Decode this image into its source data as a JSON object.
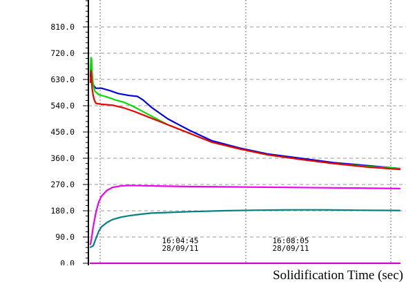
{
  "chart_data": {
    "type": "line",
    "xlabel": "Solidification Time (sec)",
    "ylabel": "",
    "ylim": [
      0,
      900
    ],
    "y_ticks": [
      0,
      90,
      180,
      270,
      360,
      450,
      540,
      630,
      720,
      810
    ],
    "y_tick_labels": [
      "0.0",
      "90.0",
      "180.0",
      "270.0",
      "360.0",
      "450.0",
      "540.0",
      "630.0",
      "720.0",
      "810.0"
    ],
    "x_unit": "sec",
    "xlim": [
      0,
      560
    ],
    "x_time_labels": [
      {
        "x": 145,
        "time": "16:04:45",
        "date": "28/09/11"
      },
      {
        "x": 345,
        "time": "16:08:05",
        "date": "28/09/11"
      }
    ],
    "grid": true,
    "legend": "none",
    "series": [
      {
        "color": "#0000dd",
        "x": [
          0,
          1,
          3,
          6,
          10,
          20,
          35,
          50,
          70,
          85,
          95,
          110,
          140,
          180,
          220,
          270,
          320,
          380,
          440,
          500,
          560
        ],
        "y": [
          640,
          680,
          625,
          608,
          600,
          600,
          592,
          582,
          575,
          572,
          560,
          535,
          495,
          455,
          420,
          395,
          375,
          360,
          345,
          335,
          325
        ]
      },
      {
        "color": "#00dd00",
        "x": [
          0,
          1,
          2,
          3,
          5,
          8,
          15,
          30,
          45,
          60,
          75,
          90,
          110,
          140,
          180,
          220,
          270,
          320,
          380,
          440,
          500,
          560
        ],
        "y": [
          660,
          705,
          700,
          655,
          610,
          590,
          578,
          570,
          560,
          552,
          540,
          525,
          505,
          475,
          445,
          415,
          392,
          372,
          356,
          342,
          332,
          325
        ]
      },
      {
        "color": "#ee0000",
        "x": [
          0,
          1,
          3,
          5,
          7,
          10,
          20,
          40,
          60,
          80,
          100,
          120,
          140,
          180,
          220,
          270,
          320,
          380,
          440,
          500,
          560
        ],
        "y": [
          620,
          660,
          600,
          575,
          560,
          548,
          545,
          542,
          533,
          520,
          505,
          490,
          475,
          445,
          415,
          392,
          372,
          356,
          342,
          330,
          322
        ]
      },
      {
        "color": "#ee00ee",
        "x": [
          0,
          2,
          5,
          10,
          15,
          20,
          30,
          40,
          55,
          70,
          90,
          120,
          180,
          240,
          300,
          360,
          420,
          480,
          560
        ],
        "y": [
          65,
          85,
          125,
          175,
          210,
          230,
          250,
          260,
          265,
          267,
          266,
          265,
          263,
          262,
          261,
          260,
          259,
          258,
          256
        ]
      },
      {
        "color": "#008080",
        "x": [
          0,
          5,
          10,
          15,
          20,
          30,
          40,
          55,
          70,
          90,
          110,
          140,
          180,
          240,
          300,
          360,
          420,
          480,
          560
        ],
        "y": [
          55,
          60,
          85,
          110,
          125,
          140,
          150,
          158,
          163,
          168,
          172,
          174,
          177,
          180,
          182,
          183,
          183,
          182,
          181
        ]
      },
      {
        "color": "#cc00cc",
        "x": [
          0,
          560
        ],
        "y": [
          0,
          0
        ]
      }
    ]
  }
}
